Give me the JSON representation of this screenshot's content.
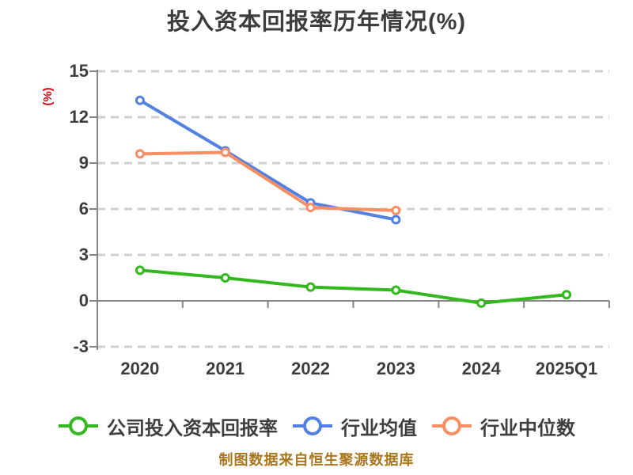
{
  "chart": {
    "title": "投入资本回报率历年情况(%)",
    "y_axis_label": "(%)",
    "footer_note": "制图数据来自恒生聚源数据库"
  },
  "colors": {
    "background": "#ffffff",
    "title_text": "#3d3d3d",
    "tick_text": "#3d3d3d",
    "legend_text": "#3f3f3f",
    "y_axis_label_text": "#e60012",
    "footer_text": "#aa761c",
    "axis_line": "#858585",
    "gridline": "#cfcfcf",
    "marker_fill": "#ffffff"
  },
  "chart_data": {
    "type": "line",
    "title": "投入资本回报率历年情况(%)",
    "ylabel": "(%)",
    "categories": [
      "2020",
      "2021",
      "2022",
      "2023",
      "2024",
      "2025Q1"
    ],
    "ylim": [
      -3,
      15
    ],
    "yticks": [
      15,
      12,
      9,
      6,
      3,
      0,
      -3
    ],
    "grid": "horizontal-dashed",
    "x_axis_position": "zero",
    "legend_position": "bottom",
    "series": [
      {
        "key": "company-roic",
        "name": "公司投入资本回报率",
        "color": "#33b81e",
        "values": [
          2.0,
          1.5,
          0.9,
          0.7,
          -0.15,
          0.4
        ]
      },
      {
        "key": "industry-mean",
        "name": "行业均值",
        "color": "#5181e3",
        "values": [
          13.1,
          9.8,
          6.4,
          5.3,
          null,
          null
        ]
      },
      {
        "key": "industry-median",
        "name": "行业中位数",
        "color": "#f98e63",
        "values": [
          9.6,
          9.7,
          6.1,
          5.9,
          null,
          null
        ]
      }
    ],
    "footer_note": "制图数据来自恒生聚源数据库"
  }
}
